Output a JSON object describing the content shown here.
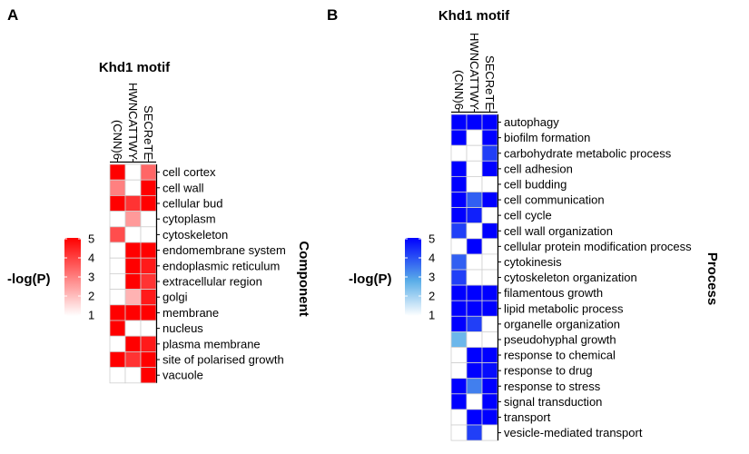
{
  "panels": {
    "A": {
      "letter": "A"
    },
    "B": {
      "letter": "B"
    }
  },
  "chart_data": [
    {
      "type": "heatmap",
      "panel": "A",
      "title": "Khd1 motif",
      "side_label": "Component",
      "legend": {
        "title": "-log(P)",
        "ticks": [
          5,
          4,
          3,
          2,
          1
        ],
        "color_low": "#ffffff",
        "color_high": "#ff0000",
        "min": 0,
        "max": 5
      },
      "columns": [
        "(CNN)6",
        "HWNCATTWY",
        "SECReTE"
      ],
      "rows": [
        "cell cortex",
        "cell wall",
        "cellular bud",
        "cytoplasm",
        "cytoskeleton",
        "endomembrane system",
        "endoplasmic reticulum",
        "extracellular region",
        "golgi",
        "membrane",
        "nucleus",
        "plasma membrane",
        "site of polarised growth",
        "vacuole"
      ],
      "values": [
        [
          5,
          0,
          3
        ],
        [
          2.5,
          0,
          5
        ],
        [
          5,
          4,
          5
        ],
        [
          0,
          2,
          0
        ],
        [
          3.5,
          0,
          0
        ],
        [
          0,
          5,
          5
        ],
        [
          0,
          5,
          4.5
        ],
        [
          0,
          5,
          4
        ],
        [
          0,
          1.5,
          4.5
        ],
        [
          5,
          5,
          5
        ],
        [
          5,
          0,
          0
        ],
        [
          0,
          5,
          4.5
        ],
        [
          5,
          4,
          5
        ],
        [
          0,
          0,
          5
        ]
      ]
    },
    {
      "type": "heatmap",
      "panel": "B",
      "title": "Khd1 motif",
      "side_label": "Process",
      "legend": {
        "title": "-log(P)",
        "ticks": [
          5,
          4,
          3,
          2,
          1
        ],
        "color_low": "#ffffff",
        "color_mid": "#5aaee8",
        "color_high": "#0000ff",
        "min": 0,
        "max": 5
      },
      "columns": [
        "(CNN)6",
        "HWNCATTWY",
        "SECReTE"
      ],
      "rows": [
        "autophagy",
        "biofilm formation",
        "carbohydrate metabolic process",
        "cell adhesion",
        "cell budding",
        "cell communication",
        "cell cycle",
        "cell wall organization",
        "cellular protein modification process",
        "cytokinesis",
        "cytoskeleton organization",
        "filamentous growth",
        "lipid metabolic process",
        "organelle organization",
        "pseudohyphal growth",
        "response to chemical",
        "response to drug",
        "response to stress",
        "signal transduction",
        "transport",
        "vesicle-mediated transport"
      ],
      "values": [
        [
          5,
          5,
          5
        ],
        [
          5,
          0,
          5
        ],
        [
          0,
          0,
          4
        ],
        [
          5,
          0,
          5
        ],
        [
          5,
          0,
          0
        ],
        [
          5,
          3.5,
          5
        ],
        [
          5,
          4.5,
          0
        ],
        [
          4,
          0,
          5
        ],
        [
          0,
          5,
          0
        ],
        [
          3.5,
          0,
          0
        ],
        [
          4,
          0,
          0
        ],
        [
          5,
          5,
          5
        ],
        [
          5,
          5,
          5
        ],
        [
          5,
          4,
          0
        ],
        [
          2,
          0,
          0
        ],
        [
          0,
          5,
          5
        ],
        [
          0,
          5,
          4.8
        ],
        [
          5,
          3,
          5
        ],
        [
          5,
          0,
          5
        ],
        [
          0,
          5,
          5
        ],
        [
          0,
          4,
          0
        ]
      ]
    }
  ]
}
